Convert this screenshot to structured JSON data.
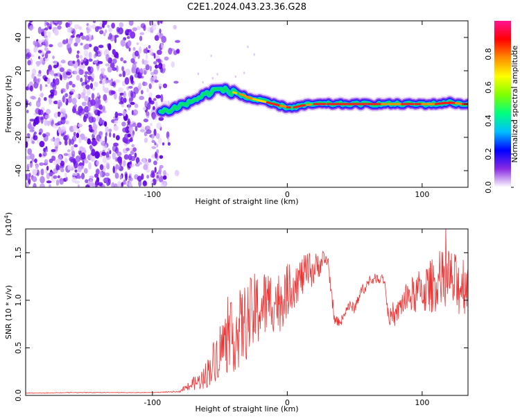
{
  "title": "C2E1.2024.043.23.36.G28",
  "chart_data": [
    {
      "type": "heatmap",
      "xlabel": "Height of straight line (km)",
      "ylabel": "Frequency (Hz)",
      "xlim": [
        -194,
        134
      ],
      "ylim": [
        -50,
        50
      ],
      "x_ticks": [
        -100,
        0,
        100
      ],
      "x_tick_labels": [
        "-100",
        "0",
        "100"
      ],
      "y_ticks": [
        -40,
        -20,
        0,
        20,
        40
      ],
      "y_tick_labels": [
        "-40",
        "-20",
        "0",
        "20",
        "40"
      ],
      "colorbar": {
        "label": "Normalized spectral amplitude",
        "range": [
          0,
          1
        ],
        "ticks": [
          0,
          0.2,
          0.4,
          0.6,
          0.8
        ],
        "tick_labels": [
          "0.0",
          "0.2",
          "0.4",
          "0.6",
          "0.8"
        ],
        "colormap": [
          "#ffffff",
          "#8a2be2",
          "#0000ff",
          "#00bfff",
          "#00ff7f",
          "#7fff00",
          "#ffff00",
          "#ff8c00",
          "#ff0000",
          "#ff1493"
        ]
      },
      "ridge": {
        "x": [
          -94,
          -90,
          -85,
          -80,
          -75,
          -70,
          -65,
          -60,
          -55,
          -50,
          -45,
          -40,
          -35,
          -30,
          -25,
          -20,
          -15,
          -10,
          -5,
          0,
          5,
          10,
          20,
          30,
          40,
          50,
          60,
          70,
          80,
          90,
          100,
          110,
          120,
          130,
          134
        ],
        "y": [
          -5,
          -4,
          -3,
          -1,
          0,
          2,
          4,
          6,
          8,
          9,
          8,
          7,
          6,
          4,
          3,
          2,
          1,
          0,
          -1,
          -2,
          -2,
          -1,
          0,
          0,
          0,
          0,
          0,
          0,
          0,
          0,
          0,
          0,
          1,
          0,
          0
        ]
      },
      "noise_region": {
        "x": [
          -194,
          -80
        ],
        "y": [
          -50,
          50
        ]
      }
    },
    {
      "type": "line",
      "xlabel": "Height of straight line (km)",
      "ylabel": "SNR (10 * v/v)",
      "y_multiplier_label": "(x10",
      "y_multiplier_exp": "4",
      "y_multiplier_close": ")",
      "xlim": [
        -194,
        134
      ],
      "ylim": [
        0,
        17500
      ],
      "x_ticks": [
        -100,
        0,
        100
      ],
      "x_tick_labels": [
        "-100",
        "0",
        "100"
      ],
      "y_ticks": [
        0,
        5000,
        10000,
        15000
      ],
      "y_tick_labels": [
        "0.0",
        "0.5",
        "1.0",
        "1.5"
      ],
      "series": [
        {
          "color": "#ee3333",
          "x": [
            -194,
            -180,
            -160,
            -140,
            -120,
            -100,
            -90,
            -80,
            -70,
            -65,
            -60,
            -55,
            -50,
            -45,
            -40,
            -35,
            -30,
            -25,
            -20,
            -15,
            -10,
            -5,
            0,
            5,
            10,
            15,
            20,
            25,
            28,
            30,
            35,
            40,
            45,
            50,
            55,
            60,
            65,
            70,
            72,
            75,
            80,
            85,
            90,
            95,
            100,
            105,
            110,
            115,
            120,
            125,
            130,
            134
          ],
          "values": [
            250,
            250,
            300,
            300,
            300,
            300,
            350,
            400,
            1200,
            1500,
            2200,
            3500,
            4800,
            5800,
            6200,
            7000,
            7800,
            8600,
            9300,
            9700,
            10000,
            9800,
            11000,
            11800,
            12300,
            13000,
            13200,
            14000,
            14200,
            14300,
            7800,
            7800,
            9400,
            9200,
            11000,
            11800,
            12300,
            12300,
            12200,
            8300,
            8200,
            9700,
            10300,
            10700,
            11000,
            11300,
            11800,
            12000,
            12200,
            11500,
            11800,
            12000
          ],
          "spread": [
            30,
            30,
            30,
            30,
            30,
            30,
            40,
            60,
            700,
            900,
            1500,
            2200,
            3000,
            3600,
            3800,
            4200,
            4200,
            4200,
            4000,
            3600,
            3400,
            3200,
            2800,
            2600,
            2200,
            2000,
            1800,
            1200,
            1000,
            900,
            500,
            500,
            600,
            600,
            600,
            600,
            500,
            500,
            500,
            900,
            1000,
            1500,
            1800,
            2200,
            2500,
            2800,
            3000,
            3200,
            3400,
            3400,
            3400,
            3400
          ]
        }
      ]
    }
  ]
}
